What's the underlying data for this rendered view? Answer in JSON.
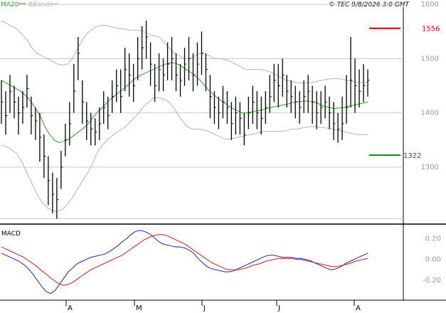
{
  "header": {
    "ma_label": "MA20",
    "bb_label": "BBands",
    "timestamp": "© TEC 9/8/2026 3:0 GMT"
  },
  "colors": {
    "ma": "#22a822",
    "bbands": "#b4b4b4",
    "price": "#000000",
    "grid": "#c8c8c8",
    "resistance": "#cc0000",
    "support": "#0a8a0a",
    "macd": "#1e1ec8",
    "signal": "#c81e1e"
  },
  "chart_data": [
    {
      "type": "ohlc",
      "y_ticks": [
        1300,
        1400,
        1500,
        1600
      ],
      "ylim": [
        1195,
        1595
      ],
      "grid": true,
      "levels": {
        "resistance": {
          "value": 1556,
          "label": "1556"
        },
        "support": {
          "value": 1322,
          "label": "1322"
        }
      },
      "price_close": [
        1420,
        1395,
        1440,
        1420,
        1400,
        1410,
        1445,
        1395,
        1385,
        1355,
        1320,
        1275,
        1250,
        1240,
        1300,
        1350,
        1380,
        1440,
        1510,
        1420,
        1385,
        1370,
        1365,
        1380,
        1410,
        1395,
        1430,
        1450,
        1430,
        1480,
        1470,
        1450,
        1500,
        1520,
        1540,
        1490,
        1450,
        1480,
        1470,
        1490,
        1500,
        1470,
        1460,
        1490,
        1500,
        1470,
        1490,
        1510,
        1480,
        1430,
        1410,
        1400,
        1420,
        1410,
        1380,
        1400,
        1390,
        1360,
        1400,
        1420,
        1400,
        1390,
        1410,
        1430,
        1460,
        1450,
        1470,
        1440,
        1430,
        1420,
        1410,
        1430,
        1440,
        1420,
        1400,
        1410,
        1420,
        1400,
        1380,
        1370,
        1380,
        1410,
        1460,
        1450,
        1440,
        1450,
        1460
      ],
      "price_high": [
        1460,
        1440,
        1470,
        1450,
        1430,
        1440,
        1470,
        1430,
        1410,
        1400,
        1360,
        1320,
        1290,
        1280,
        1330,
        1380,
        1420,
        1490,
        1540,
        1460,
        1420,
        1400,
        1390,
        1410,
        1440,
        1430,
        1460,
        1480,
        1480,
        1520,
        1510,
        1490,
        1540,
        1560,
        1570,
        1530,
        1490,
        1510,
        1500,
        1530,
        1540,
        1510,
        1490,
        1520,
        1540,
        1510,
        1530,
        1550,
        1510,
        1470,
        1440,
        1430,
        1450,
        1440,
        1420,
        1430,
        1420,
        1400,
        1430,
        1450,
        1440,
        1430,
        1440,
        1470,
        1490,
        1490,
        1500,
        1470,
        1460,
        1450,
        1440,
        1460,
        1470,
        1450,
        1440,
        1440,
        1450,
        1430,
        1420,
        1400,
        1430,
        1470,
        1540,
        1500,
        1480,
        1490,
        1480
      ],
      "price_low": [
        1380,
        1360,
        1400,
        1390,
        1360,
        1380,
        1410,
        1360,
        1350,
        1310,
        1280,
        1230,
        1215,
        1205,
        1260,
        1320,
        1340,
        1400,
        1460,
        1380,
        1350,
        1340,
        1340,
        1350,
        1380,
        1370,
        1400,
        1420,
        1400,
        1440,
        1430,
        1420,
        1460,
        1480,
        1500,
        1450,
        1420,
        1440,
        1440,
        1460,
        1460,
        1440,
        1430,
        1450,
        1460,
        1440,
        1450,
        1470,
        1440,
        1390,
        1380,
        1370,
        1390,
        1380,
        1350,
        1360,
        1360,
        1340,
        1370,
        1380,
        1370,
        1360,
        1380,
        1400,
        1420,
        1410,
        1430,
        1410,
        1400,
        1390,
        1380,
        1400,
        1400,
        1380,
        1370,
        1380,
        1390,
        1370,
        1350,
        1345,
        1350,
        1380,
        1410,
        1400,
        1410,
        1420,
        1430
      ],
      "ma20": [
        1460,
        1455,
        1450,
        1445,
        1440,
        1432,
        1422,
        1410,
        1395,
        1375,
        1360,
        1350,
        1345,
        1348,
        1352,
        1358,
        1365,
        1372,
        1380,
        1392,
        1402,
        1410,
        1420,
        1428,
        1435,
        1442,
        1450,
        1458,
        1465,
        1470,
        1474,
        1478,
        1482,
        1486,
        1490,
        1492,
        1492,
        1488,
        1482,
        1476,
        1470,
        1462,
        1452,
        1442,
        1434,
        1426,
        1420,
        1414,
        1408,
        1404,
        1400,
        1400,
        1402,
        1404,
        1405,
        1408,
        1410,
        1412,
        1414,
        1415,
        1418,
        1420,
        1421,
        1422,
        1421,
        1420,
        1416,
        1412,
        1410,
        1408,
        1409,
        1410,
        1412,
        1414,
        1416,
        1418,
        1420
      ],
      "bb_upper": [
        1570,
        1565,
        1560,
        1555,
        1545,
        1535,
        1520,
        1510,
        1505,
        1500,
        1495,
        1490,
        1488,
        1490,
        1500,
        1520,
        1535,
        1548,
        1555,
        1560,
        1562,
        1560,
        1558,
        1556,
        1555,
        1553,
        1552,
        1552,
        1550,
        1545,
        1542,
        1540,
        1530,
        1520,
        1510,
        1505,
        1500,
        1500,
        1505,
        1510,
        1508,
        1505,
        1500,
        1500,
        1498,
        1495,
        1490,
        1485,
        1480,
        1480,
        1480,
        1480,
        1478,
        1475,
        1470,
        1465,
        1460,
        1458,
        1456,
        1455,
        1455,
        1456,
        1458,
        1460,
        1462,
        1463,
        1463,
        1462,
        1460,
        1458,
        1456,
        1456,
        1456
      ],
      "bb_lower": [
        1340,
        1338,
        1332,
        1325,
        1310,
        1290,
        1270,
        1250,
        1235,
        1225,
        1220,
        1218,
        1222,
        1232,
        1245,
        1260,
        1275,
        1290,
        1308,
        1330,
        1342,
        1352,
        1360,
        1366,
        1372,
        1380,
        1390,
        1400,
        1412,
        1420,
        1428,
        1428,
        1425,
        1420,
        1408,
        1392,
        1380,
        1372,
        1370,
        1370,
        1368,
        1365,
        1360,
        1356,
        1352,
        1352,
        1354,
        1356,
        1358,
        1360,
        1362,
        1365,
        1366,
        1366,
        1366,
        1366,
        1367,
        1370,
        1370,
        1372,
        1374,
        1375,
        1374,
        1373,
        1372,
        1370,
        1368,
        1366,
        1364,
        1362,
        1360,
        1360,
        1360
      ]
    },
    {
      "type": "line",
      "title": "MACD",
      "y_ticks": [
        0.2,
        0.0,
        -0.2
      ],
      "y_tick_labels": [
        "0.20",
        "0.00",
        "-0.20"
      ],
      "ylim": [
        -0.38,
        0.32
      ],
      "x_labels": [
        "A",
        "M",
        "J",
        "J",
        "A"
      ],
      "series": [
        {
          "role": "macd",
          "values": [
            0.06,
            0.04,
            0.02,
            0.0,
            -0.02,
            -0.05,
            -0.09,
            -0.14,
            -0.2,
            -0.26,
            -0.31,
            -0.33,
            -0.3,
            -0.24,
            -0.18,
            -0.12,
            -0.08,
            -0.04,
            -0.02,
            0.0,
            0.02,
            0.03,
            0.04,
            0.05,
            0.07,
            0.1,
            0.13,
            0.17,
            0.2,
            0.24,
            0.27,
            0.28,
            0.27,
            0.25,
            0.22,
            0.18,
            0.15,
            0.14,
            0.13,
            0.12,
            0.12,
            0.11,
            0.09,
            0.06,
            0.01,
            -0.03,
            -0.07,
            -0.09,
            -0.1,
            -0.11,
            -0.12,
            -0.12,
            -0.11,
            -0.09,
            -0.07,
            -0.05,
            -0.03,
            -0.01,
            0.01,
            0.03,
            0.04,
            0.04,
            0.03,
            0.02,
            0.02,
            0.02,
            0.01,
            0.01,
            0.0,
            -0.01,
            -0.03,
            -0.05,
            -0.07,
            -0.09,
            -0.1,
            -0.09,
            -0.07,
            -0.04,
            -0.02,
            0.0,
            0.02,
            0.04,
            0.06
          ]
        },
        {
          "role": "signal",
          "values": [
            0.12,
            0.1,
            0.08,
            0.06,
            0.04,
            0.02,
            -0.01,
            -0.04,
            -0.07,
            -0.11,
            -0.14,
            -0.18,
            -0.21,
            -0.24,
            -0.25,
            -0.24,
            -0.22,
            -0.19,
            -0.16,
            -0.13,
            -0.1,
            -0.08,
            -0.06,
            -0.04,
            -0.02,
            0.0,
            0.02,
            0.04,
            0.07,
            0.1,
            0.13,
            0.16,
            0.19,
            0.21,
            0.23,
            0.24,
            0.24,
            0.23,
            0.21,
            0.19,
            0.17,
            0.15,
            0.12,
            0.09,
            0.06,
            0.03,
            0.0,
            -0.03,
            -0.05,
            -0.07,
            -0.09,
            -0.1,
            -0.1,
            -0.1,
            -0.09,
            -0.08,
            -0.06,
            -0.05,
            -0.04,
            -0.02,
            -0.01,
            0.0,
            0.01,
            0.01,
            0.01,
            0.01,
            0.0,
            0.0,
            -0.01,
            -0.02,
            -0.03,
            -0.04,
            -0.05,
            -0.06,
            -0.07,
            -0.07,
            -0.06,
            -0.05,
            -0.04,
            -0.02,
            -0.01,
            0.0,
            0.01
          ]
        }
      ]
    }
  ]
}
